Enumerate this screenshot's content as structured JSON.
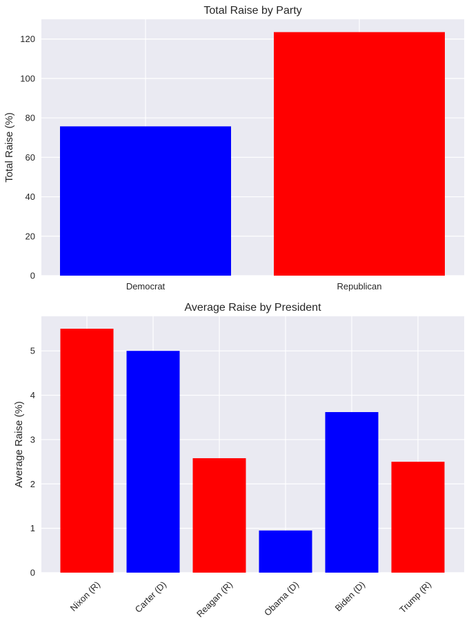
{
  "chart_data": [
    {
      "type": "bar",
      "title": "Total Raise by Party",
      "xlabel": "",
      "ylabel": "Total Raise (%)",
      "categories": [
        "Democrat",
        "Republican"
      ],
      "values": [
        75.7,
        123.5
      ],
      "colors": [
        "#0000ff",
        "#ff0000"
      ],
      "ylim": [
        0,
        130
      ],
      "yticks": [
        0,
        20,
        40,
        60,
        80,
        100,
        120
      ],
      "grid": true,
      "background": "#eaeaf2"
    },
    {
      "type": "bar",
      "title": "Average Raise by President",
      "xlabel": "",
      "ylabel": "Average Raise (%)",
      "categories": [
        "Nixon (R)",
        "Carter (D)",
        "Reagan (R)",
        "Obama (D)",
        "Biden (D)",
        "Trump (R)"
      ],
      "values": [
        5.5,
        5.0,
        2.58,
        0.95,
        3.62,
        2.5
      ],
      "colors": [
        "#ff0000",
        "#0000ff",
        "#ff0000",
        "#0000ff",
        "#0000ff",
        "#ff0000"
      ],
      "ylim": [
        0,
        5.78
      ],
      "yticks": [
        0,
        1,
        2,
        3,
        4,
        5
      ],
      "xtick_rotation": 45,
      "grid": true,
      "background": "#eaeaf2"
    }
  ]
}
